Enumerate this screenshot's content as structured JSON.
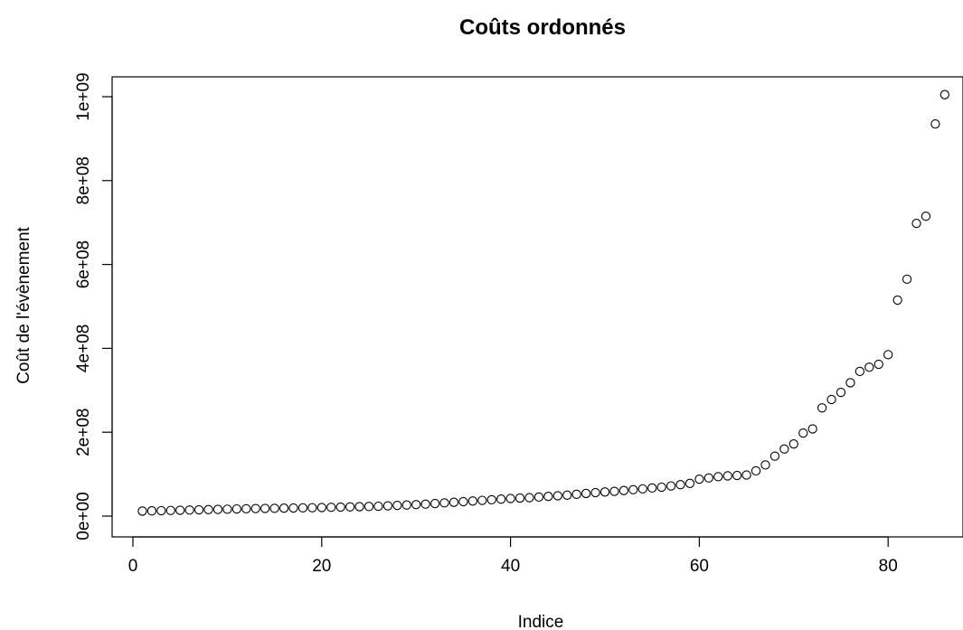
{
  "chart_data": {
    "type": "scatter",
    "title": "Coûts ordonnés",
    "xlabel": "Indice",
    "ylabel": "Coût de l'évènement",
    "xlim": [
      0,
      86
    ],
    "ylim": [
      0,
      1000000000
    ],
    "x_ticks": [
      0,
      20,
      40,
      60,
      80
    ],
    "x_tick_labels": [
      "0",
      "20",
      "40",
      "60",
      "80"
    ],
    "y_ticks": [
      0,
      200000000,
      400000000,
      600000000,
      800000000,
      1000000000
    ],
    "y_tick_labels": [
      "0e+00",
      "2e+08",
      "4e+08",
      "6e+08",
      "8e+08",
      "1e+09"
    ],
    "grid": false,
    "marker": "open-circle",
    "x": [
      1,
      2,
      3,
      4,
      5,
      6,
      7,
      8,
      9,
      10,
      11,
      12,
      13,
      14,
      15,
      16,
      17,
      18,
      19,
      20,
      21,
      22,
      23,
      24,
      25,
      26,
      27,
      28,
      29,
      30,
      31,
      32,
      33,
      34,
      35,
      36,
      37,
      38,
      39,
      40,
      41,
      42,
      43,
      44,
      45,
      46,
      47,
      48,
      49,
      50,
      51,
      52,
      53,
      54,
      55,
      56,
      57,
      58,
      59,
      60,
      61,
      62,
      63,
      64,
      65,
      66,
      67,
      68,
      69,
      70,
      71,
      72,
      73,
      74,
      75,
      76,
      77,
      78,
      79,
      80,
      81,
      82,
      83,
      84,
      85,
      86
    ],
    "y": [
      12000000,
      12500000,
      13000000,
      13500000,
      14000000,
      14500000,
      15000000,
      15500000,
      16000000,
      16500000,
      17000000,
      17500000,
      18000000,
      18300000,
      18600000,
      19000000,
      19300000,
      19700000,
      20000000,
      20500000,
      21000000,
      21500000,
      22000000,
      22500000,
      23000000,
      23500000,
      24500000,
      25500000,
      26500000,
      27500000,
      28500000,
      30000000,
      31500000,
      33000000,
      34500000,
      36000000,
      37500000,
      39000000,
      40500000,
      42000000,
      43000000,
      44000000,
      45500000,
      47000000,
      48500000,
      50000000,
      52000000,
      54000000,
      56000000,
      57500000,
      59000000,
      61000000,
      63000000,
      65000000,
      67000000,
      69000000,
      72000000,
      75000000,
      78000000,
      88000000,
      91000000,
      94000000,
      96000000,
      97000000,
      98000000,
      108000000,
      122000000,
      143000000,
      160000000,
      172000000,
      198000000,
      208000000,
      258000000,
      278000000,
      295000000,
      318000000,
      345000000,
      355000000,
      362000000,
      385000000,
      515000000,
      565000000,
      698000000,
      715000000,
      935000000,
      1005000000
    ]
  }
}
